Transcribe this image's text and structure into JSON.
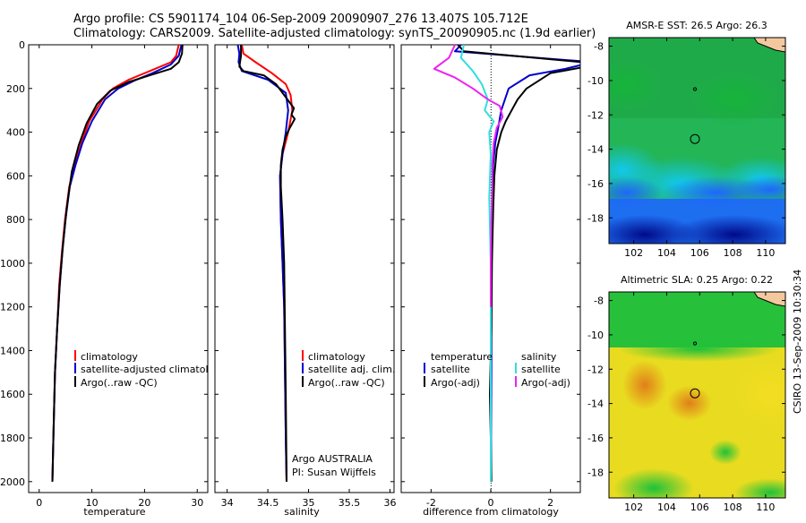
{
  "header": {
    "line1": "Argo profile: CS 5901174_104 06-Sep-2009 20090907_276 13.407S 105.712E",
    "line2": "Climatology: CARS2009. Satellite-adjusted climatology: synTS_20090905.nc (1.9d earlier)"
  },
  "side_label": "CSIRO 13-Sep-2009 10:30:34",
  "colors": {
    "red": "#ff0000",
    "blue": "#0000cc",
    "black": "#000000",
    "cyan": "#33dddd",
    "magenta": "#ee22ee"
  },
  "chart_data": [
    {
      "id": "temperature",
      "type": "line",
      "xlabel": "temperature",
      "ylabel": "",
      "xlim": [
        -2,
        32
      ],
      "ylim": [
        2050,
        0
      ],
      "xticks": [
        0,
        10,
        20,
        30
      ],
      "yticks": [
        0,
        200,
        400,
        600,
        800,
        1000,
        1200,
        1400,
        1600,
        1800,
        2000
      ],
      "legend": [
        "climatology",
        "satellite-adjusted climatology",
        "Argo(..raw -QC)"
      ],
      "series": [
        {
          "name": "climatology",
          "color": "red",
          "x": [
            26.5,
            26.0,
            25.0,
            21.0,
            17.0,
            14.0,
            12.0,
            9.5,
            8.0,
            6.8,
            5.7,
            4.9,
            4.3,
            3.8,
            3.4,
            3.0,
            2.7,
            2.5
          ],
          "y": [
            0,
            50,
            80,
            120,
            160,
            200,
            250,
            350,
            450,
            550,
            650,
            800,
            950,
            1100,
            1300,
            1500,
            1800,
            2000
          ]
        },
        {
          "name": "satellite-adjusted climatology",
          "color": "blue",
          "x": [
            27.0,
            26.5,
            25.0,
            21.5,
            18.0,
            15.0,
            12.5,
            10.0,
            8.2,
            6.9,
            5.8,
            5.0,
            4.4,
            3.9,
            3.4,
            3.0,
            2.7,
            2.5
          ],
          "y": [
            0,
            50,
            90,
            130,
            165,
            200,
            250,
            350,
            450,
            550,
            650,
            800,
            950,
            1100,
            1300,
            1500,
            1800,
            2000
          ]
        },
        {
          "name": "Argo(..raw -QC)",
          "color": "black",
          "x": [
            27.2,
            27.1,
            26.5,
            25.0,
            21.0,
            17.0,
            13.5,
            11.0,
            9.0,
            7.5,
            6.2,
            5.2,
            4.5,
            3.9,
            3.4,
            3.0,
            2.7,
            2.5
          ],
          "y": [
            0,
            40,
            80,
            110,
            140,
            170,
            210,
            270,
            360,
            460,
            580,
            750,
            920,
            1100,
            1300,
            1500,
            1800,
            2000
          ]
        }
      ]
    },
    {
      "id": "salinity",
      "type": "line",
      "xlabel": "salinity",
      "ylabel": "",
      "xlim": [
        33.85,
        36.05
      ],
      "ylim": [
        2050,
        0
      ],
      "xticks": [
        34,
        34.5,
        35,
        35.5,
        36
      ],
      "legend": [
        "climatology",
        "satellite adj. clim.",
        "Argo(..raw -QC)"
      ],
      "annotation": [
        "Argo AUSTRALIA",
        "PI: Susan Wijffels"
      ],
      "series": [
        {
          "name": "climatology",
          "color": "red",
          "x": [
            34.18,
            34.2,
            34.35,
            34.55,
            34.72,
            34.78,
            34.8,
            34.75,
            34.68,
            34.65,
            34.66,
            34.68,
            34.7,
            34.71,
            34.72,
            34.73
          ],
          "y": [
            0,
            40,
            80,
            130,
            180,
            230,
            300,
            400,
            500,
            600,
            800,
            1000,
            1200,
            1500,
            1800,
            2000
          ]
        },
        {
          "name": "satellite adj. clim.",
          "color": "blue",
          "x": [
            34.13,
            34.15,
            34.14,
            34.18,
            34.5,
            34.72,
            34.75,
            34.72,
            34.68,
            34.65,
            34.66,
            34.68,
            34.7,
            34.71,
            34.72,
            34.73
          ],
          "y": [
            0,
            40,
            80,
            120,
            160,
            220,
            300,
            400,
            500,
            600,
            800,
            1000,
            1200,
            1500,
            1800,
            2000
          ]
        },
        {
          "name": "Argo(..raw -QC)",
          "color": "black",
          "x": [
            34.17,
            34.17,
            34.15,
            34.2,
            34.45,
            34.6,
            34.7,
            34.78,
            34.82,
            34.79,
            34.83,
            34.77,
            34.72,
            34.68,
            34.66,
            34.66,
            34.68,
            34.7,
            34.71,
            34.72,
            34.73
          ],
          "y": [
            0,
            50,
            100,
            120,
            140,
            180,
            230,
            270,
            290,
            320,
            340,
            380,
            420,
            480,
            550,
            650,
            800,
            1000,
            1300,
            1600,
            2000
          ]
        }
      ]
    },
    {
      "id": "difference",
      "type": "line",
      "xlabel": "difference from climatology",
      "ylabel": "",
      "xlim": [
        -3,
        3
      ],
      "ylim": [
        2050,
        0
      ],
      "xticks": [
        -2,
        0,
        2
      ],
      "legend_left": [
        "temperature",
        "satellite",
        "Argo(-adj)"
      ],
      "legend_right": [
        "salinity",
        "satellite",
        "Argo(-adj)"
      ],
      "series": [
        {
          "name": "temperature satellite",
          "color": "blue",
          "x": [
            -1.0,
            -1.2,
            3.0,
            3.1,
            2.5,
            1.3,
            0.6,
            0.35,
            0.25,
            0.15,
            0.08,
            0.05,
            0.03,
            0.02,
            0.02,
            0.01,
            0.01
          ],
          "y": [
            0,
            30,
            75,
            90,
            110,
            140,
            200,
            300,
            380,
            450,
            550,
            700,
            900,
            1200,
            1500,
            1800,
            2000
          ]
        },
        {
          "name": "temperature Argo(-adj)",
          "color": "black",
          "x": [
            -1.1,
            -0.9,
            3.1,
            3.2,
            2.0,
            1.2,
            0.9,
            0.7,
            0.5,
            0.35,
            0.2,
            0.12,
            0.08,
            0.04,
            0.02,
            -0.03,
            0.0,
            0.02
          ],
          "y": [
            0,
            30,
            80,
            100,
            130,
            200,
            250,
            300,
            350,
            400,
            480,
            600,
            750,
            1000,
            1300,
            1600,
            1800,
            2000
          ]
        },
        {
          "name": "salinity satellite",
          "color": "cyan",
          "x": [
            -0.9,
            -1.0,
            -0.6,
            -0.3,
            -0.1,
            -0.2,
            0.1,
            -0.05,
            0.0,
            -0.05,
            0.0,
            0.0,
            0.0
          ],
          "y": [
            0,
            60,
            120,
            180,
            250,
            300,
            350,
            400,
            500,
            700,
            1000,
            1500,
            2000
          ]
        },
        {
          "name": "salinity Argo(-adj)",
          "color": "magenta",
          "x": [
            -1.2,
            -1.4,
            -1.9,
            -1.2,
            -0.6,
            -0.1,
            0.3,
            0.4,
            0.2,
            0.1,
            0.05,
            0.05,
            0.02,
            0.0,
            0.0
          ],
          "y": [
            0,
            60,
            110,
            150,
            200,
            250,
            280,
            330,
            380,
            450,
            550,
            650,
            800,
            1000,
            1200
          ]
        }
      ]
    },
    {
      "id": "sst_map",
      "type": "heatmap",
      "title": "AMSR-E SST: 26.5 Argo: 26.3",
      "xticks": [
        102,
        104,
        106,
        108,
        110
      ],
      "yticks": [
        -8,
        -10,
        -12,
        -14,
        -16,
        -18
      ],
      "xlim": [
        100.5,
        111.2
      ],
      "ylim": [
        -19.5,
        -7.5
      ],
      "marker": {
        "lon": 105.712,
        "lat": -13.407
      }
    },
    {
      "id": "sla_map",
      "type": "heatmap",
      "title": "Altimetric SLA: 0.25 Argo: 0.22",
      "xticks": [
        102,
        104,
        106,
        108,
        110
      ],
      "yticks": [
        -8,
        -10,
        -12,
        -14,
        -16,
        -18
      ],
      "xlim": [
        100.5,
        111.2
      ],
      "ylim": [
        -19.5,
        -7.5
      ],
      "marker": {
        "lon": 105.712,
        "lat": -13.407
      }
    }
  ]
}
